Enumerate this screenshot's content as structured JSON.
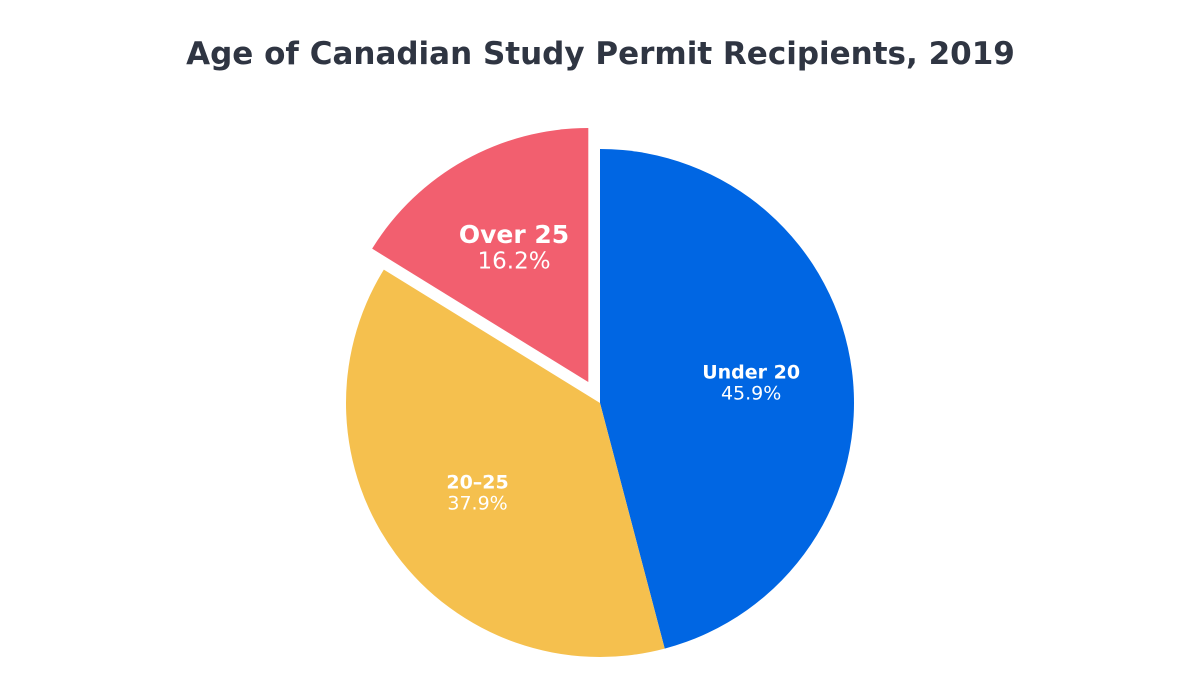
{
  "chart_data": {
    "type": "pie",
    "title": "Age of Canadian Study Permit Recipients, 2019",
    "slices": [
      {
        "label": "Under 20",
        "value": 45.9,
        "display": "45.9%",
        "color": "#0066e3",
        "exploded": false
      },
      {
        "label": "20–25",
        "value": 37.9,
        "display": "37.9%",
        "color": "#f5c04e",
        "exploded": false
      },
      {
        "label": "Over 25",
        "value": 16.2,
        "display": "16.2%",
        "color": "#f25f6f",
        "exploded": true
      }
    ],
    "start_angle": "12 o'clock",
    "direction": "clockwise",
    "legend": "none"
  }
}
